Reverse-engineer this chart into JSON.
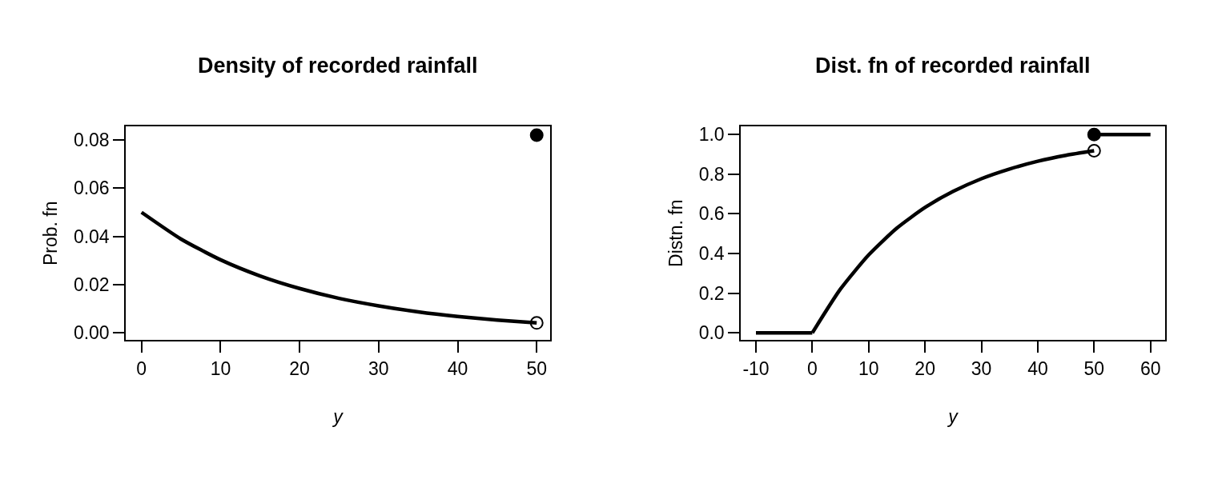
{
  "chart_data": [
    {
      "type": "line",
      "title": "Density of recorded rainfall",
      "xlabel": "y",
      "ylabel": "Prob. fn",
      "xlim": [
        -2,
        51.7
      ],
      "ylim": [
        -0.003,
        0.0856
      ],
      "xticks": [
        0,
        10,
        20,
        30,
        40,
        50
      ],
      "yticks": [
        {
          "value": 0,
          "label": "0.00"
        },
        {
          "value": 0.02,
          "label": "0.02"
        },
        {
          "value": 0.04,
          "label": "0.04"
        },
        {
          "value": 0.06,
          "label": "0.06"
        },
        {
          "value": 0.08,
          "label": "0.08"
        }
      ],
      "series": [
        {
          "color": "#000000",
          "marker": "none",
          "x": [
            0,
            5,
            10,
            15,
            20,
            25,
            30,
            35,
            40,
            45,
            50
          ],
          "values": [
            0.05,
            0.0389,
            0.0303,
            0.0236,
            0.0184,
            0.0143,
            0.0112,
            0.0087,
            0.0068,
            0.0053,
            0.0041
          ]
        },
        {
          "type": "scatter",
          "color": "#000000",
          "marker": "circle-open",
          "x": [
            50
          ],
          "values": [
            0.0041
          ]
        },
        {
          "type": "scatter",
          "color": "#000000",
          "marker": "circle",
          "x": [
            50
          ],
          "values": [
            0.082
          ]
        }
      ]
    },
    {
      "type": "line",
      "title": "Dist. fn of recorded rainfall",
      "xlabel": "y",
      "ylabel": "Distn. fn",
      "xlim": [
        -12.7,
        62.6
      ],
      "ylim": [
        -0.036,
        1.04
      ],
      "xticks": [
        -10,
        0,
        10,
        20,
        30,
        40,
        50,
        60
      ],
      "yticks": [
        {
          "value": 0,
          "label": "0.0"
        },
        {
          "value": 0.2,
          "label": "0.2"
        },
        {
          "value": 0.4,
          "label": "0.4"
        },
        {
          "value": 0.6,
          "label": "0.6"
        },
        {
          "value": 0.8,
          "label": "0.8"
        },
        {
          "value": 1,
          "label": "1.0"
        }
      ],
      "series": [
        {
          "color": "#000000",
          "marker": "none",
          "x": [
            -10,
            0
          ],
          "values": [
            0,
            0
          ]
        },
        {
          "color": "#000000",
          "marker": "none",
          "x": [
            0,
            5,
            10,
            15,
            20,
            25,
            30,
            35,
            40,
            45,
            50
          ],
          "values": [
            0,
            0.221,
            0.393,
            0.528,
            0.632,
            0.713,
            0.777,
            0.826,
            0.865,
            0.895,
            0.918
          ]
        },
        {
          "color": "#000000",
          "marker": "none",
          "x": [
            50,
            60
          ],
          "values": [
            1,
            1
          ]
        },
        {
          "type": "scatter",
          "color": "#000000",
          "marker": "circle-open",
          "x": [
            50
          ],
          "values": [
            0.918
          ]
        },
        {
          "type": "scatter",
          "color": "#000000",
          "marker": "circle",
          "x": [
            50
          ],
          "values": [
            1
          ]
        }
      ]
    }
  ]
}
